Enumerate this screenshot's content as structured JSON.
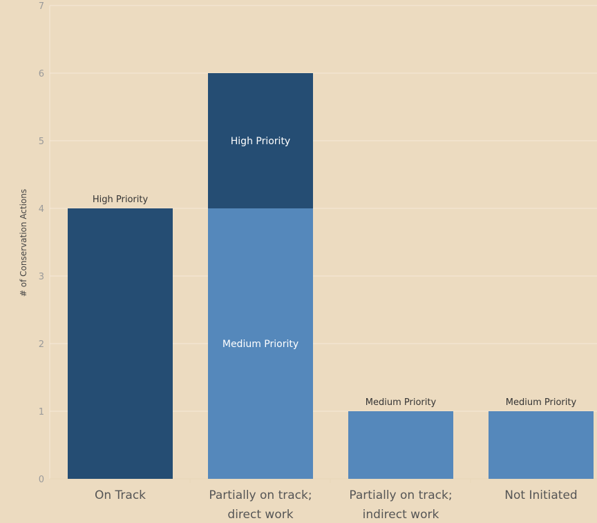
{
  "chart_data": {
    "type": "bar",
    "stacked": true,
    "categories": [
      [
        "On Track"
      ],
      [
        "Partially on track;",
        "direct work"
      ],
      [
        "Partially on track;",
        "indirect work"
      ],
      [
        "Not Initiated"
      ]
    ],
    "series": [
      {
        "name": "Medium Priority",
        "color": "#5588bb",
        "values": [
          0,
          4,
          1,
          1
        ]
      },
      {
        "name": "High Priority",
        "color": "#254d73",
        "values": [
          4,
          2,
          0,
          0
        ]
      }
    ],
    "ylabel": "# of Conservation Actions",
    "ylim": [
      0,
      7
    ],
    "yticks": [
      0,
      1,
      2,
      3,
      4,
      5,
      6,
      7
    ],
    "grid": true,
    "label_color_outside": "#333333",
    "label_color_inside": "#ffffff"
  }
}
